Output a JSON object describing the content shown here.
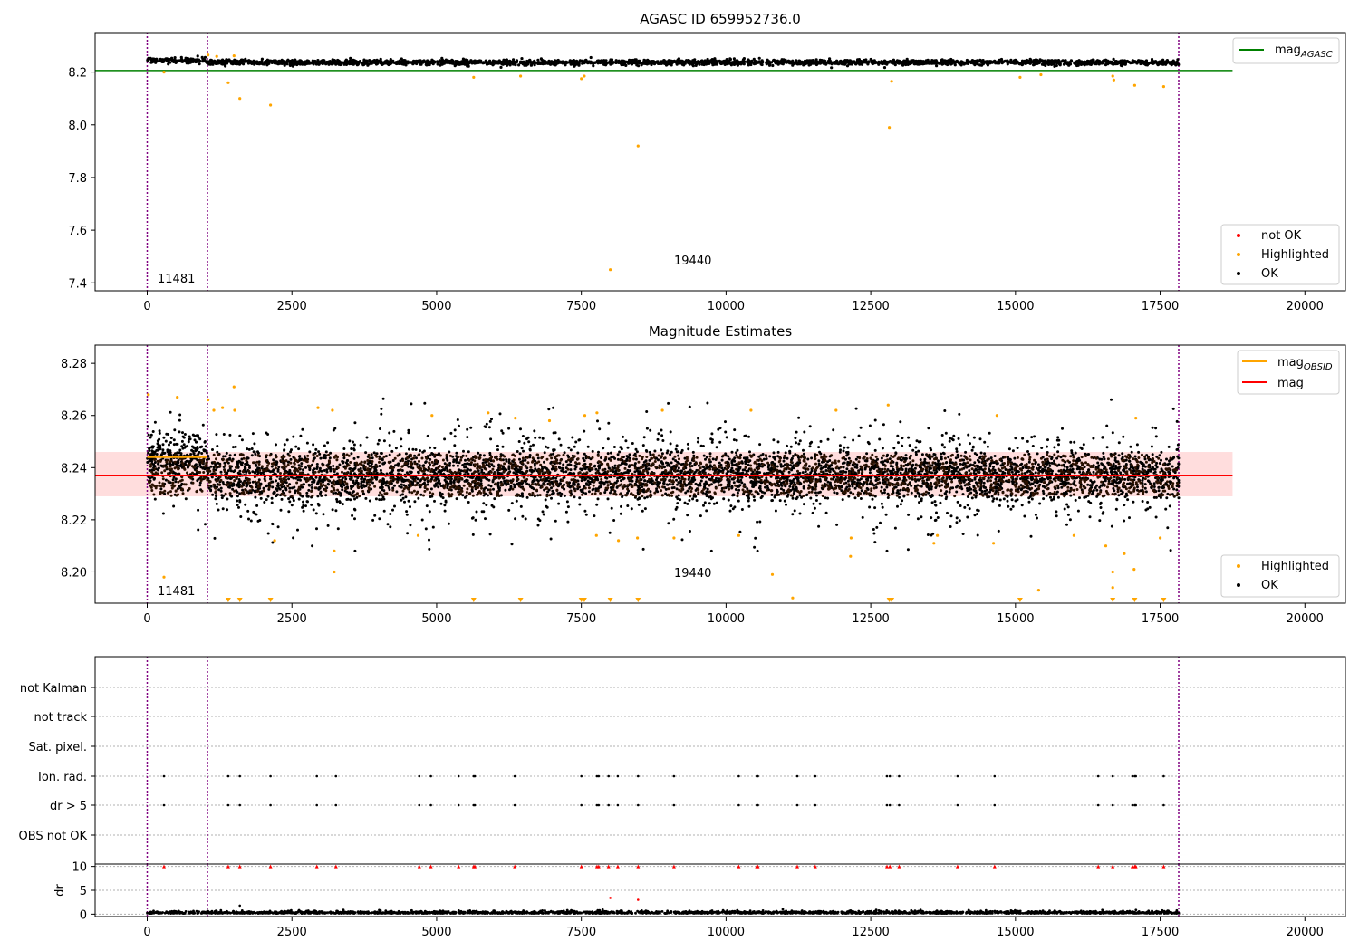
{
  "figure": {
    "title": "AGASC ID 659952736.0",
    "obsid_labels": [
      "11481",
      "19440"
    ]
  },
  "colors": {
    "ok": "#000000",
    "highlighted": "#ffa500",
    "not_ok": "#ff0000",
    "agasc_line": "#008000",
    "mag_line": "#ff0000",
    "mag_obsid_line": "#ffa500",
    "mag_band": "#ffdddd",
    "obsid_boundary": "#800080",
    "grid": "#b0b0b0"
  },
  "chart_data": [
    {
      "type": "scatter",
      "title": "",
      "x_ticks": [
        "0",
        "2500",
        "5000",
        "7500",
        "10000",
        "12500",
        "15000",
        "17500",
        "20000"
      ],
      "y_ticks": [
        "7.4",
        "7.6",
        "7.8",
        "8.0",
        "8.2"
      ],
      "xlim": [
        -900,
        20700
      ],
      "ylim": [
        7.37,
        8.35
      ],
      "obsid_boundaries": [
        0,
        1040,
        17820
      ],
      "reference_lines": [
        {
          "name": "mag_AGASC",
          "y": 8.206,
          "x_range": [
            -900,
            18750
          ]
        }
      ],
      "series": [
        {
          "name": "not OK",
          "points": []
        },
        {
          "name": "Highlighted",
          "points": [
            [
              290,
              8.2
            ],
            [
              1400,
              8.16
            ],
            [
              1600,
              8.1
            ],
            [
              2130,
              8.075
            ],
            [
              5640,
              8.18
            ],
            [
              6450,
              8.185
            ],
            [
              7500,
              8.175
            ],
            [
              7550,
              8.185
            ],
            [
              8000,
              7.45
            ],
            [
              8480,
              7.92
            ],
            [
              12820,
              7.99
            ],
            [
              12860,
              8.165
            ],
            [
              15080,
              8.18
            ],
            [
              15440,
              8.19
            ],
            [
              16680,
              8.185
            ],
            [
              16700,
              8.17
            ],
            [
              17060,
              8.15
            ],
            [
              17560,
              8.145
            ],
            [
              1050,
              8.265
            ],
            [
              1200,
              8.26
            ],
            [
              1500,
              8.262
            ]
          ]
        },
        {
          "name": "OK",
          "band": {
            "center": 8.237,
            "half_width": 0.014
          }
        }
      ],
      "legends": [
        {
          "position": "top-right",
          "entries": [
            "mag_AGASC"
          ]
        },
        {
          "position": "bottom-right",
          "entries": [
            "not OK",
            "Highlighted",
            "OK"
          ]
        }
      ]
    },
    {
      "type": "scatter",
      "title": "Magnitude Estimates",
      "x_ticks": [
        "0",
        "2500",
        "5000",
        "7500",
        "10000",
        "12500",
        "15000",
        "17500",
        "20000"
      ],
      "y_ticks": [
        "8.20",
        "8.22",
        "8.24",
        "8.26",
        "8.28"
      ],
      "xlim": [
        -900,
        20700
      ],
      "ylim": [
        8.188,
        8.287
      ],
      "obsid_boundaries": [
        0,
        1040,
        17820
      ],
      "reference_lines": [
        {
          "name": "mag_OBSID",
          "segments": [
            [
              0,
              1040,
              8.244
            ],
            [
              1040,
              17820,
              8.237
            ]
          ]
        },
        {
          "name": "mag",
          "y": 8.237,
          "x_range": [
            -900,
            18750
          ],
          "band": [
            8.229,
            8.246
          ]
        }
      ],
      "series": [
        {
          "name": "Highlighted",
          "points": [
            [
              20,
              8.268
            ],
            [
              290,
              8.198
            ],
            [
              520,
              8.267
            ],
            [
              1050,
              8.266
            ],
            [
              1150,
              8.262
            ],
            [
              1300,
              8.263
            ],
            [
              1500,
              8.271
            ],
            [
              1510,
              8.262
            ],
            [
              2200,
              8.212
            ],
            [
              3230,
              8.2
            ],
            [
              3230,
              8.208
            ],
            [
              2950,
              8.263
            ],
            [
              3200,
              8.262
            ],
            [
              4680,
              8.214
            ],
            [
              4920,
              8.26
            ],
            [
              5890,
              8.261
            ],
            [
              6360,
              8.259
            ],
            [
              6950,
              8.258
            ],
            [
              7560,
              8.26
            ],
            [
              7760,
              8.214
            ],
            [
              7770,
              8.261
            ],
            [
              8140,
              8.212
            ],
            [
              8470,
              8.213
            ],
            [
              8900,
              8.262
            ],
            [
              9100,
              8.213
            ],
            [
              10220,
              8.214
            ],
            [
              10430,
              8.262
            ],
            [
              10800,
              8.199
            ],
            [
              11150,
              8.19
            ],
            [
              11900,
              8.262
            ],
            [
              12150,
              8.206
            ],
            [
              12160,
              8.213
            ],
            [
              12800,
              8.264
            ],
            [
              13590,
              8.211
            ],
            [
              13650,
              8.214
            ],
            [
              14620,
              8.211
            ],
            [
              14680,
              8.26
            ],
            [
              15400,
              8.193
            ],
            [
              16010,
              8.214
            ],
            [
              16560,
              8.21
            ],
            [
              16680,
              8.2
            ],
            [
              16680,
              8.194
            ],
            [
              16880,
              8.207
            ],
            [
              17050,
              8.201
            ],
            [
              17080,
              8.259
            ],
            [
              17500,
              8.213
            ]
          ]
        },
        {
          "name": "Highlighted (below axis)",
          "x": [
            1400,
            1600,
            2130,
            5640,
            6450,
            7500,
            7550,
            8000,
            8480,
            12820,
            12860,
            15080,
            16680,
            17060,
            17560
          ]
        },
        {
          "name": "OK",
          "band": {
            "center": 8.237,
            "core_half_width": 0.008,
            "outer_half_width": 0.018
          }
        }
      ],
      "legends": [
        {
          "position": "top-right",
          "entries": [
            "mag_OBSID",
            "mag"
          ]
        },
        {
          "position": "bottom-right",
          "entries": [
            "Highlighted",
            "OK"
          ]
        }
      ]
    },
    {
      "type": "scatter",
      "title": "",
      "categories": [
        "not Kalman",
        "not track",
        "Sat. pixel.",
        "Ion. rad.",
        "dr > 5",
        "OBS not OK"
      ],
      "flag_x": [
        290,
        1400,
        1600,
        2130,
        2930,
        3260,
        4700,
        4900,
        5380,
        5640,
        5660,
        6350,
        7500,
        7770,
        7800,
        7970,
        8130,
        8480,
        9100,
        10220,
        10530,
        10550,
        11230,
        11540,
        12780,
        12830,
        12990,
        14000,
        14640,
        16430,
        16680,
        17020,
        17060,
        17080,
        17560
      ],
      "x_ticks": [
        "0",
        "2500",
        "5000",
        "7500",
        "10000",
        "12500",
        "15000",
        "17500",
        "20000"
      ],
      "xlim": [
        -900,
        20700
      ],
      "obsid_boundaries": [
        0,
        1040,
        17820
      ]
    },
    {
      "type": "scatter",
      "title": "",
      "ylabel": "dr",
      "y_ticks": [
        "0",
        "5",
        "10"
      ],
      "ylim": [
        -0.5,
        10.5
      ],
      "dr_clipped_at": 10,
      "dr_outliers": [
        [
          8000,
          3.4
        ],
        [
          8480,
          3.0
        ],
        [
          1600,
          1.8
        ]
      ],
      "dr_typical": 0.4
    }
  ]
}
